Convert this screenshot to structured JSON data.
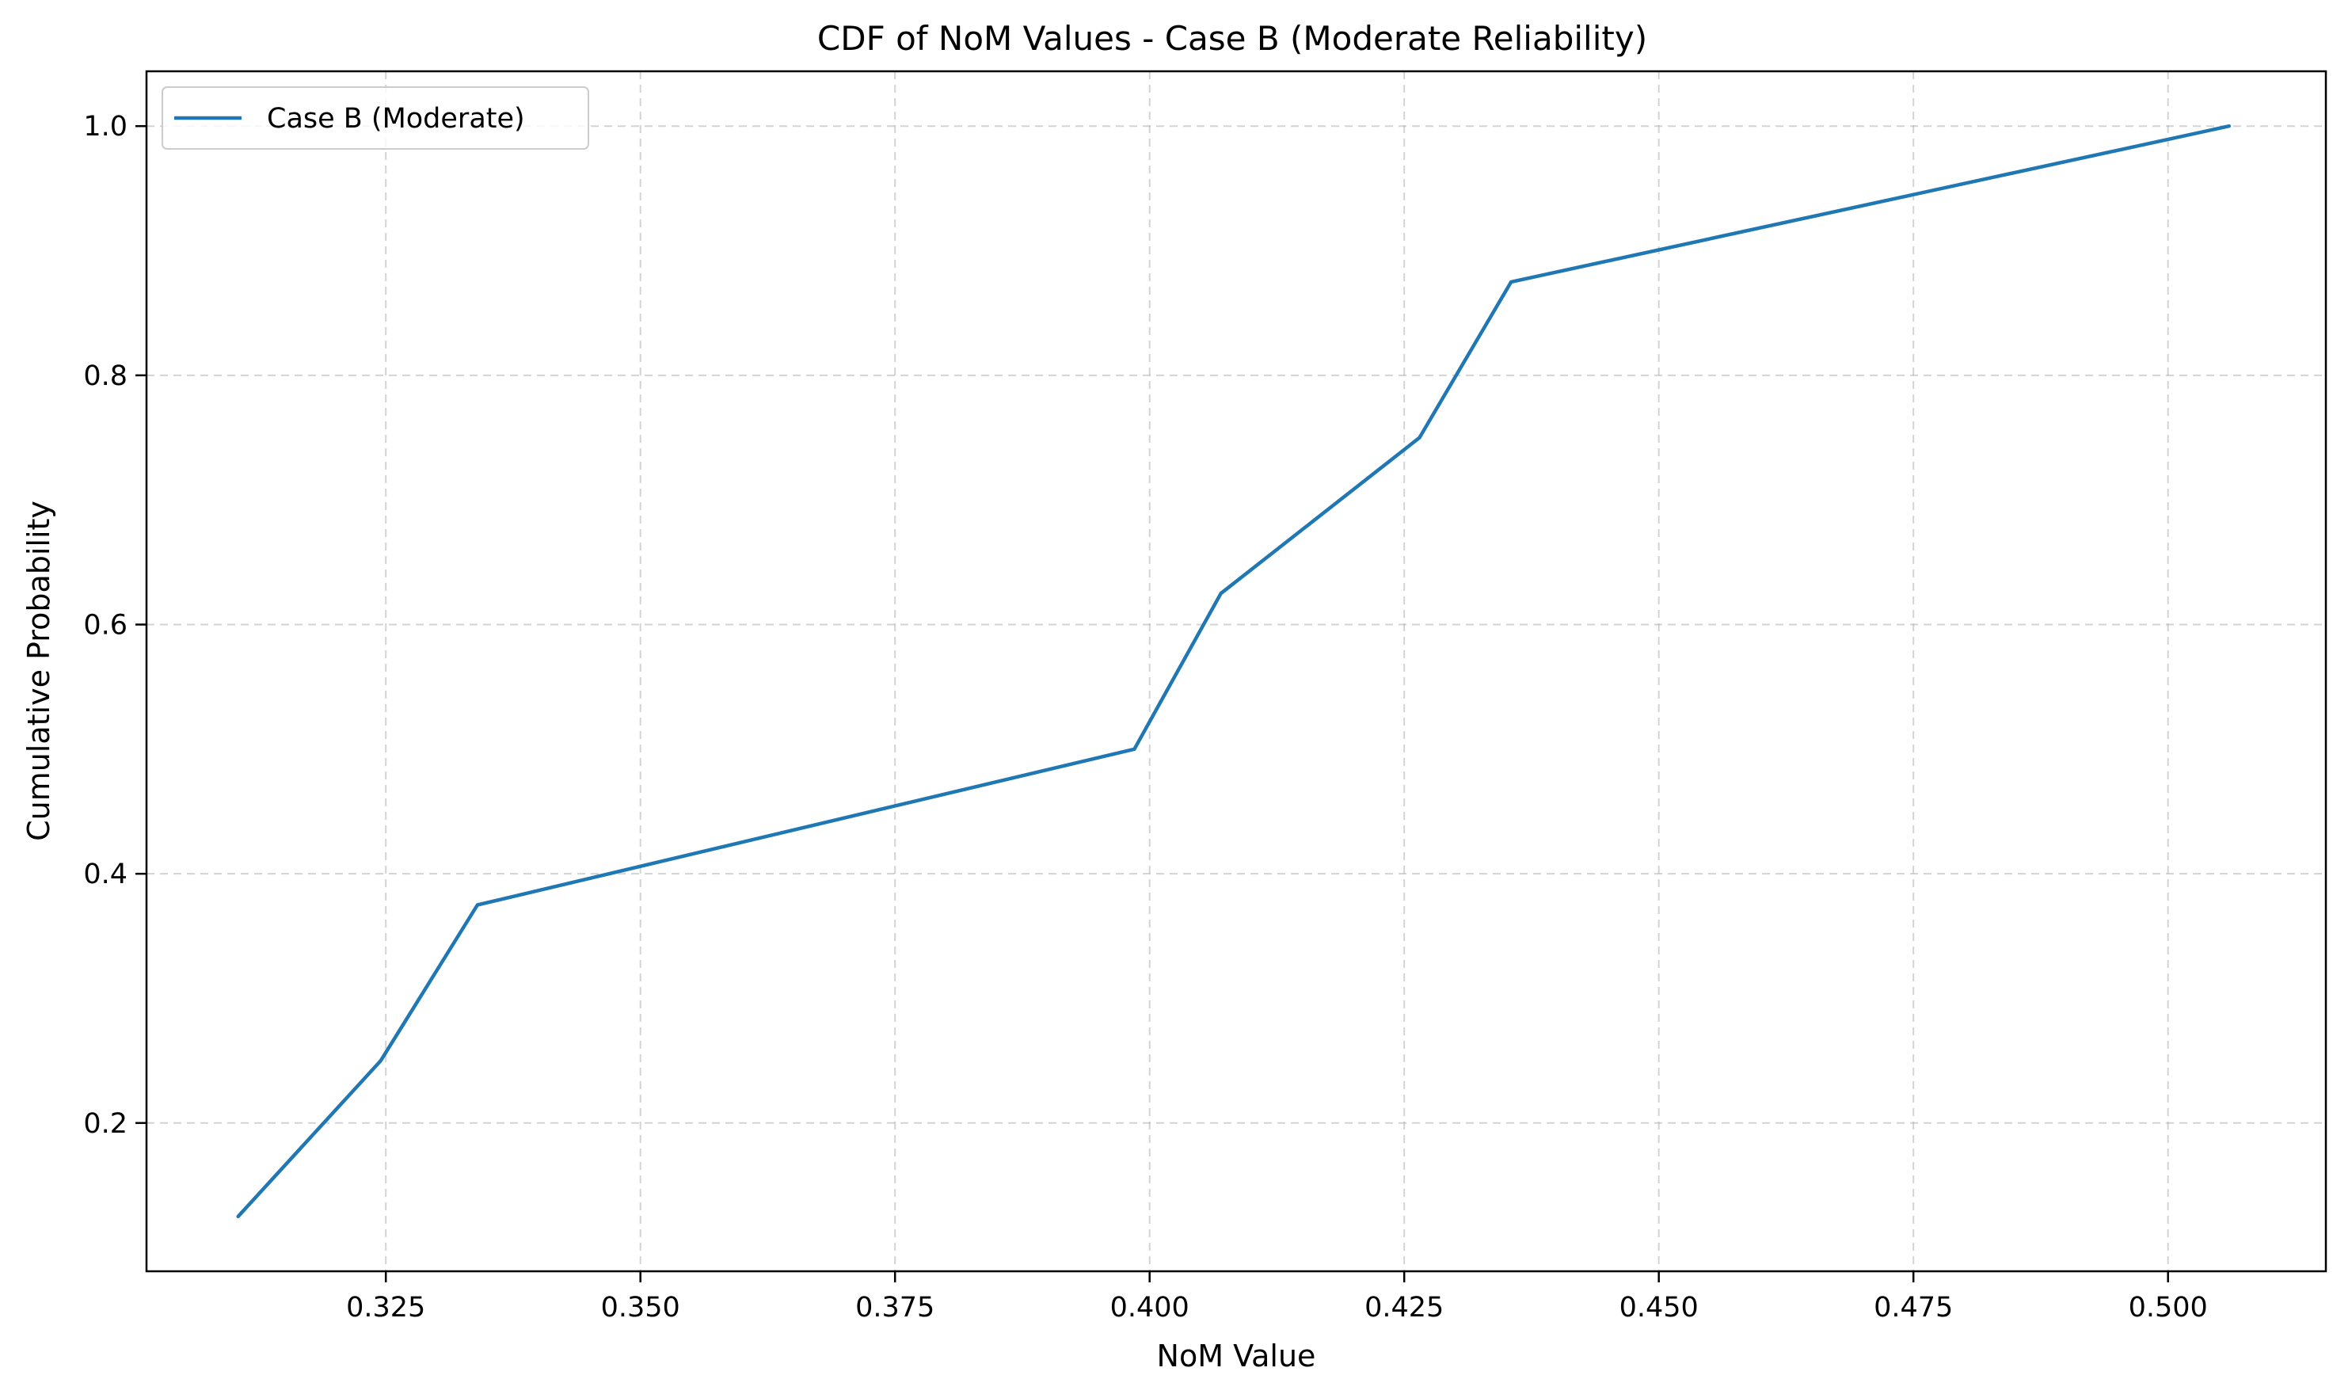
{
  "chart_data": {
    "type": "line",
    "title": "CDF of NoM Values - Case B (Moderate Reliability)",
    "xlabel": "NoM Value",
    "ylabel": "Cumulative Probability",
    "xlim": [
      0.3015,
      0.5155
    ],
    "ylim": [
      0.081,
      1.044
    ],
    "xticks": [
      0.325,
      0.35,
      0.375,
      0.4,
      0.425,
      0.45,
      0.475,
      0.5
    ],
    "xtick_labels": [
      "0.325",
      "0.350",
      "0.375",
      "0.400",
      "0.425",
      "0.450",
      "0.475",
      "0.500"
    ],
    "yticks": [
      0.2,
      0.4,
      0.6,
      0.8,
      1.0
    ],
    "ytick_labels": [
      "0.2",
      "0.4",
      "0.6",
      "0.8",
      "1.0"
    ],
    "grid": true,
    "legend_position": "top-left",
    "series": [
      {
        "name": "Case B (Moderate)",
        "color": "#1f77b4",
        "x": [
          0.3105,
          0.3245,
          0.334,
          0.3985,
          0.407,
          0.4265,
          0.4355,
          0.506
        ],
        "y": [
          0.125,
          0.25,
          0.375,
          0.5,
          0.625,
          0.75,
          0.875,
          1.0
        ]
      }
    ]
  }
}
